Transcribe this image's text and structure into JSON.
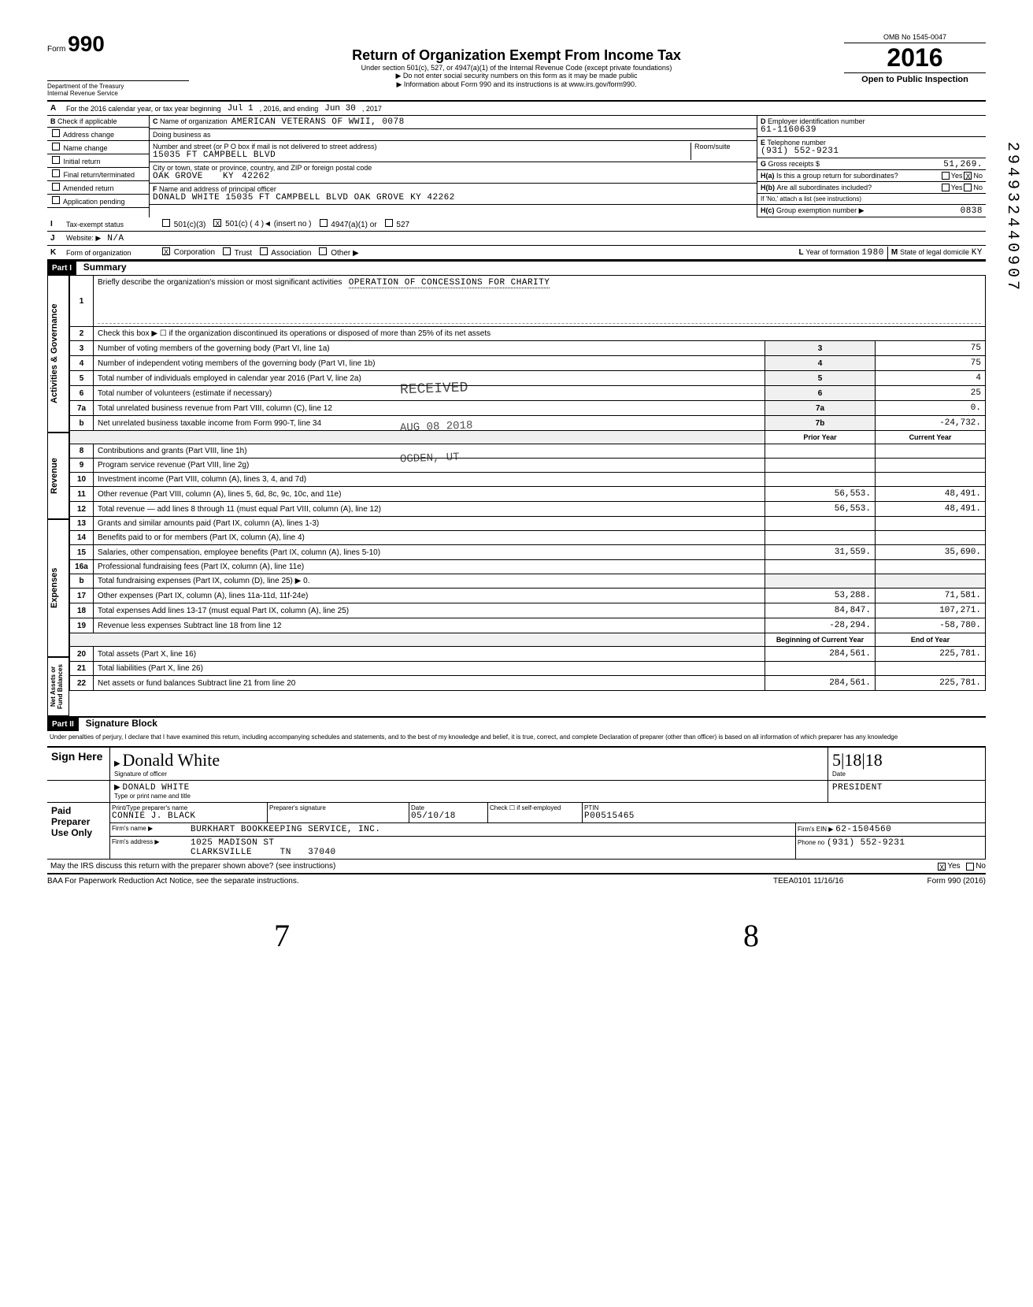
{
  "header": {
    "form_no": "990",
    "form_prefix": "Form",
    "dept": "Department of the Treasury",
    "irs": "Internal Revenue Service",
    "title": "Return of Organization Exempt From Income Tax",
    "subtitle1": "Under section 501(c), 527, or 4947(a)(1) of the Internal Revenue Code (except private foundations)",
    "subtitle2": "▶ Do not enter social security numbers on this form as it may be made public",
    "subtitle3": "▶ Information about Form 990 and its instructions is at www.irs.gov/form990.",
    "omb": "OMB No 1545-0047",
    "year": "2016",
    "open": "Open to Public Inspection"
  },
  "line_a": {
    "label": "A",
    "text": "For the 2016 calendar year, or tax year beginning",
    "begin": "Jul 1",
    "mid": ", 2016, and ending",
    "end": "Jun 30",
    "end_year": ", 2017"
  },
  "section_b": {
    "b_label": "B",
    "check_label": "Check if applicable",
    "checks": [
      {
        "label": "Address change",
        "checked": false
      },
      {
        "label": "Name change",
        "checked": false
      },
      {
        "label": "Initial return",
        "checked": false
      },
      {
        "label": "Final return/terminated",
        "checked": false
      },
      {
        "label": "Amended return",
        "checked": false
      },
      {
        "label": "Application pending",
        "checked": false
      }
    ],
    "c_label": "C",
    "name_label": "Name of organization",
    "org_name": "AMERICAN VETERANS OF WWII, 0078",
    "dba_label": "Doing business as",
    "dba": "",
    "street_label": "Number and street (or P O box if mail is not delivered to street address)",
    "room_label": "Room/suite",
    "street": "15035 FT CAMPBELL BLVD",
    "city_label": "City or town, state or province, country, and ZIP or foreign postal code",
    "city": "OAK GROVE",
    "state": "KY",
    "zip": "42262",
    "f_label": "F",
    "officer_label": "Name and address of principal officer",
    "officer": "DONALD WHITE 15035 FT CAMPBELL BLVD OAK GROVE",
    "officer_state": "KY 42262",
    "d_label": "D",
    "ein_label": "Employer identification number",
    "ein": "61-1160639",
    "e_label": "E",
    "tel_label": "Telephone number",
    "tel": "(931) 552-9231",
    "g_label": "G",
    "gross_label": "Gross receipts $",
    "gross": "51,269.",
    "ha_label": "H(a)",
    "ha_text": "Is this a group return for subordinates?",
    "ha_yes": "Yes",
    "ha_no": "No",
    "ha_checked": "X",
    "hb_label": "H(b)",
    "hb_text": "Are all subordinates included?",
    "hb_sub": "If 'No,' attach a list (see instructions)",
    "hc_label": "H(c)",
    "hc_text": "Group exemption number ▶",
    "hc_val": "0838"
  },
  "line_i": {
    "label": "I",
    "text": "Tax-exempt status",
    "opts": [
      "501(c)(3)",
      "501(c) ( 4 )◄ (insert no )",
      "4947(a)(1) or",
      "527"
    ],
    "checked_idx": 1
  },
  "line_j": {
    "label": "J",
    "text": "Website: ▶",
    "val": "N/A"
  },
  "line_k": {
    "label": "K",
    "text": "Form of organization",
    "opts": [
      "Corporation",
      "Trust",
      "Association",
      "Other ▶"
    ],
    "checked_idx": 0,
    "l_label": "L",
    "year_label": "Year of formation",
    "year_val": "1980",
    "m_label": "M",
    "state_label": "State of legal domicile",
    "state_val": "KY"
  },
  "part1": {
    "hdr": "Part I",
    "title": "Summary",
    "vert_gov": "Activities & Governance",
    "vert_rev": "Revenue",
    "vert_exp": "Expenses",
    "vert_net": "Net Assets or Fund Balances",
    "line1_label": "1",
    "line1_text": "Briefly describe the organization's mission or most significant activities",
    "line1_val": "OPERATION OF CONCESSIONS FOR CHARITY",
    "line2_label": "2",
    "line2_text": "Check this box ▶ ☐ if the organization discontinued its operations or disposed of more than 25% of its net assets",
    "rows_gov": [
      {
        "n": "3",
        "text": "Number of voting members of the governing body (Part VI, line 1a)",
        "box": "3",
        "val": "75"
      },
      {
        "n": "4",
        "text": "Number of independent voting members of the governing body (Part VI, line 1b)",
        "box": "4",
        "val": "75"
      },
      {
        "n": "5",
        "text": "Total number of individuals employed in calendar year 2016 (Part V, line 2a)",
        "box": "5",
        "val": "4"
      },
      {
        "n": "6",
        "text": "Total number of volunteers (estimate if necessary)",
        "box": "6",
        "val": "25"
      },
      {
        "n": "7a",
        "text": "Total unrelated business revenue from Part VIII, column (C), line 12",
        "box": "7a",
        "val": "0."
      },
      {
        "n": "b",
        "text": "Net unrelated business taxable income from Form 990-T, line 34",
        "box": "7b",
        "val": "-24,732."
      }
    ],
    "hdr_prior": "Prior Year",
    "hdr_curr": "Current Year",
    "rows_rev": [
      {
        "n": "8",
        "text": "Contributions and grants (Part VIII, line 1h)",
        "prior": "",
        "curr": ""
      },
      {
        "n": "9",
        "text": "Program service revenue (Part VIII, line 2g)",
        "prior": "",
        "curr": ""
      },
      {
        "n": "10",
        "text": "Investment income (Part VIII, column (A), lines 3, 4, and 7d)",
        "prior": "",
        "curr": ""
      },
      {
        "n": "11",
        "text": "Other revenue (Part VIII, column (A), lines 5, 6d, 8c, 9c, 10c, and 11e)",
        "prior": "56,553.",
        "curr": "48,491."
      },
      {
        "n": "12",
        "text": "Total revenue — add lines 8 through 11 (must equal Part VIII, column (A), line 12)",
        "prior": "56,553.",
        "curr": "48,491."
      }
    ],
    "rows_exp": [
      {
        "n": "13",
        "text": "Grants and similar amounts paid (Part IX, column (A), lines 1-3)",
        "prior": "",
        "curr": ""
      },
      {
        "n": "14",
        "text": "Benefits paid to or for members (Part IX, column (A), line 4)",
        "prior": "",
        "curr": ""
      },
      {
        "n": "15",
        "text": "Salaries, other compensation, employee benefits (Part IX, column (A), lines 5-10)",
        "prior": "31,559.",
        "curr": "35,690."
      },
      {
        "n": "16a",
        "text": "Professional fundraising fees (Part IX, column (A), line 11e)",
        "prior": "",
        "curr": ""
      },
      {
        "n": "b",
        "text": "Total fundraising expenses (Part IX, column (D), line 25) ▶    0.",
        "prior": "",
        "curr": "",
        "shade": true
      },
      {
        "n": "17",
        "text": "Other expenses (Part IX, column (A), lines 11a-11d, 11f-24e)",
        "prior": "53,288.",
        "curr": "71,581."
      },
      {
        "n": "18",
        "text": "Total expenses  Add lines 13-17 (must equal Part IX, column (A), line 25)",
        "prior": "84,847.",
        "curr": "107,271."
      },
      {
        "n": "19",
        "text": "Revenue less expenses  Subtract line 18 from line 12",
        "prior": "-28,294.",
        "curr": "-58,780."
      }
    ],
    "hdr_begin": "Beginning of Current Year",
    "hdr_end": "End of Year",
    "rows_net": [
      {
        "n": "20",
        "text": "Total assets (Part X, line 16)",
        "prior": "284,561.",
        "curr": "225,781."
      },
      {
        "n": "21",
        "text": "Total liabilities (Part X, line 26)",
        "prior": "",
        "curr": ""
      },
      {
        "n": "22",
        "text": "Net assets or fund balances  Subtract line 21 from line 20",
        "prior": "284,561.",
        "curr": "225,781."
      }
    ]
  },
  "part2": {
    "hdr": "Part II",
    "title": "Signature Block",
    "perjury": "Under penalties of perjury, I declare that I have examined this return, including accompanying schedules and statements, and to the best of my knowledge and belief, it is true, correct, and complete  Declaration of preparer (other than officer) is based on all information of which preparer has any knowledge",
    "sign_here": "Sign Here",
    "sig_label": "Signature of officer",
    "sig_val": "Donald White",
    "date_label": "Date",
    "date_val": "5|18|18",
    "name_label": "Type or print name and title",
    "name_val": "DONALD WHITE",
    "title_val": "PRESIDENT",
    "paid": "Paid Preparer Use Only",
    "prep_name_label": "Print/Type preparer's name",
    "prep_name": "CONNIE J. BLACK",
    "prep_sig_label": "Preparer's signature",
    "prep_date": "05/10/18",
    "self_emp": "Check ☐ if self-employed",
    "ptin_label": "PTIN",
    "ptin": "P00515465",
    "firm_name_label": "Firm's name ▶",
    "firm_name": "BURKHART BOOKKEEPING SERVICE, INC.",
    "firm_addr_label": "Firm's address ▶",
    "firm_addr1": "1025 MADISON ST",
    "firm_addr2": "CLARKSVILLE",
    "firm_state": "TN",
    "firm_zip": "37040",
    "firm_ein_label": "Firm's EIN ▶",
    "firm_ein": "62-1504560",
    "phone_label": "Phone no",
    "phone": "(931) 552-9231",
    "discuss": "May the IRS discuss this return with the preparer shown above? (see instructions)",
    "discuss_yes": "Yes",
    "discuss_no": "No",
    "discuss_checked": "X"
  },
  "footer": {
    "baa": "BAA  For Paperwork Reduction Act Notice, see the separate instructions.",
    "teea": "TEEA0101  11/16/16",
    "form": "Form 990 (2016)"
  },
  "stamps": {
    "received": "RECEIVED",
    "received_date": "AUG 08 2018",
    "ogden": "OGDEN, UT",
    "barcode": "294932440907",
    "handwrite1": "7",
    "handwrite2": "8"
  }
}
